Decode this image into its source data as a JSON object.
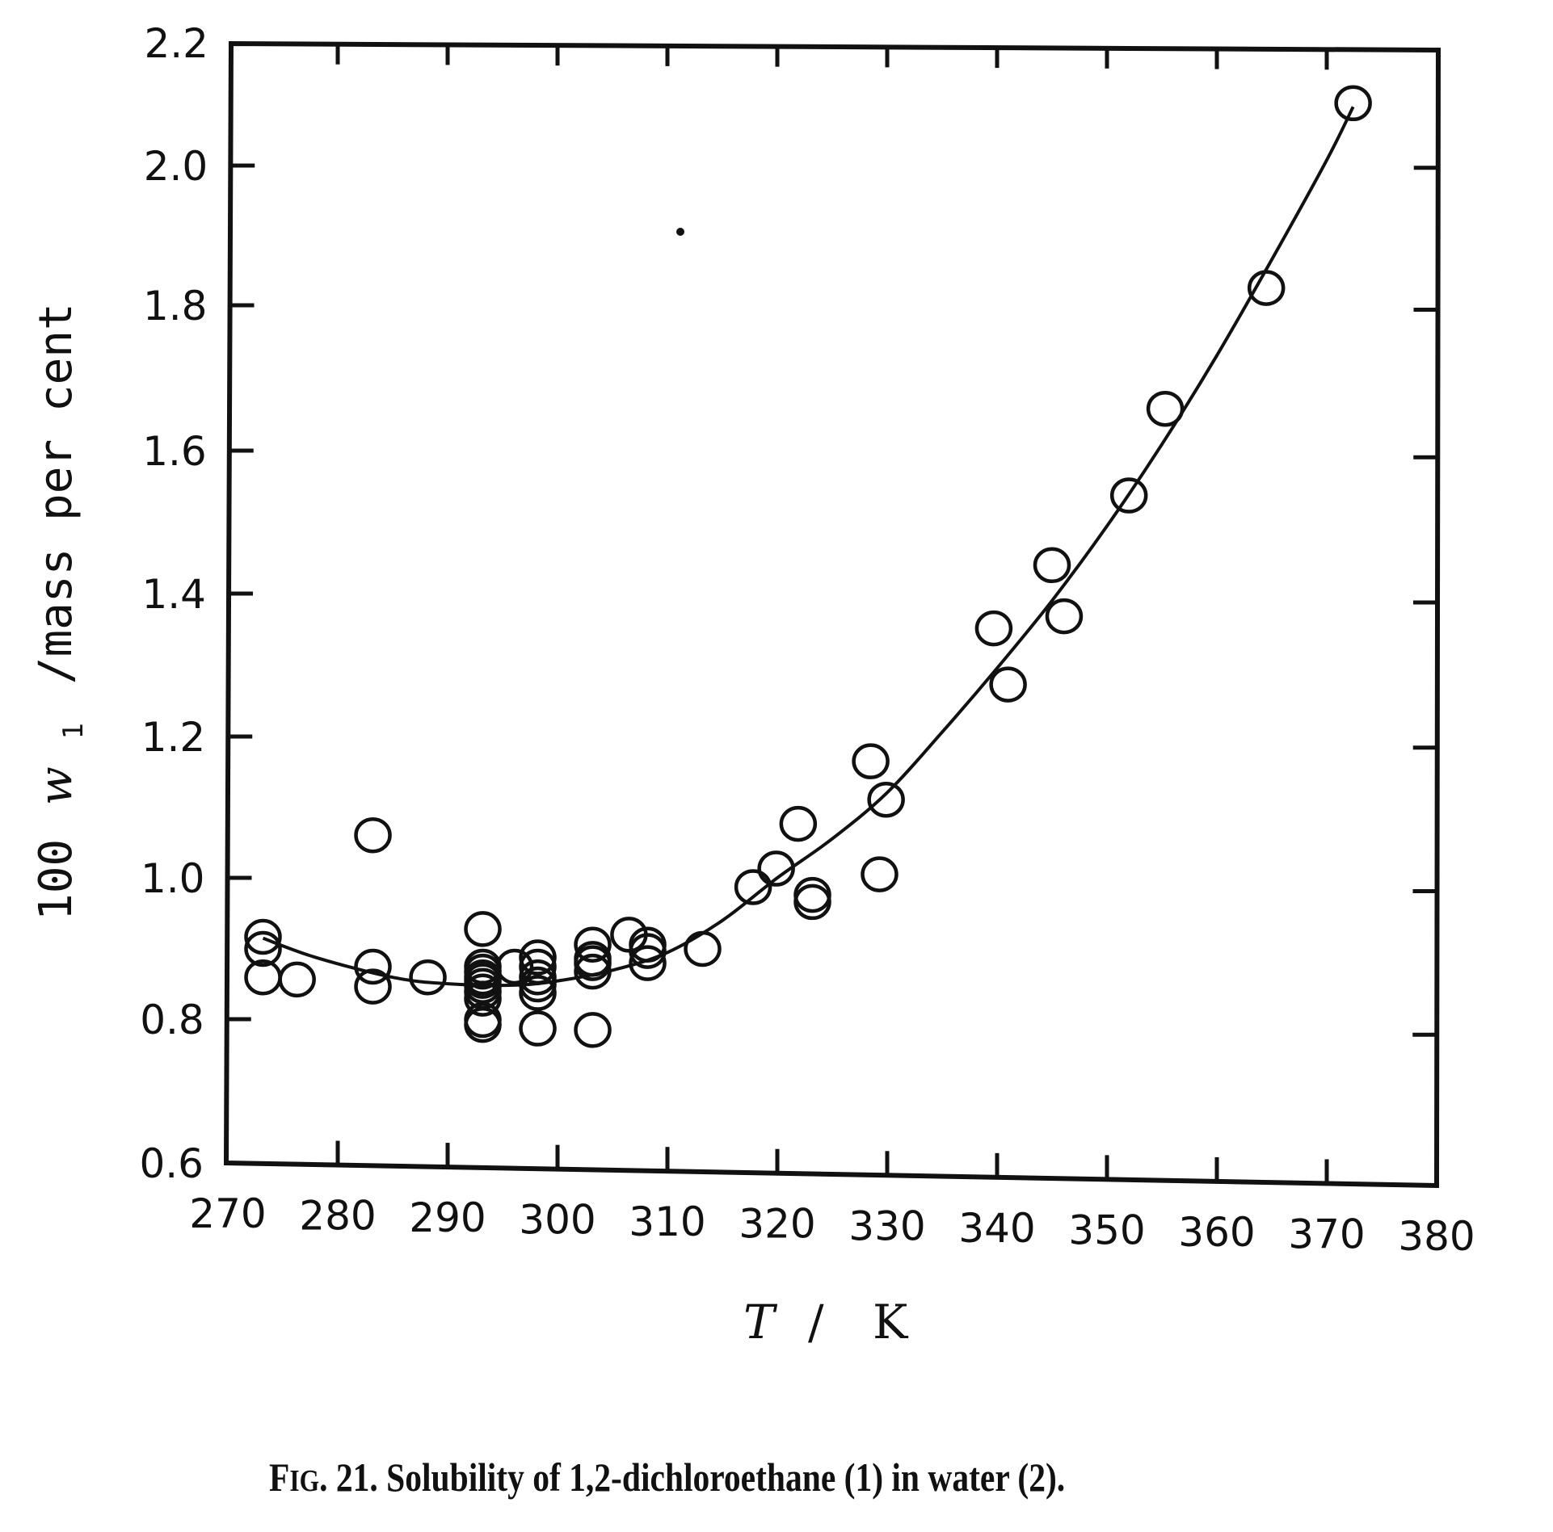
{
  "chart_data": {
    "type": "scatter",
    "title": "",
    "caption": "FIG. 21.  Solubility of 1,2-dichloroethane (1) in water (2).",
    "xlabel": "T / K",
    "ylabel": "100 w1 /mass per cent",
    "xlim": [
      270,
      380
    ],
    "ylim": [
      0.6,
      2.2
    ],
    "grid": false,
    "legend": null,
    "x_ticks": [
      270,
      280,
      290,
      300,
      310,
      320,
      330,
      340,
      350,
      360,
      370,
      380
    ],
    "y_ticks": [
      0.6,
      0.8,
      1.0,
      1.2,
      1.4,
      1.6,
      1.8,
      2.0,
      2.2
    ],
    "x_tick_labels": [
      "270",
      "280",
      "290",
      "300",
      "310",
      "320",
      "330",
      "340",
      "350",
      "360",
      "370",
      "380"
    ],
    "y_tick_labels": [
      "0.6",
      "0.8",
      "1.0",
      "1.2",
      "1.4",
      "1.6",
      "1.8",
      "2.0",
      "2.2"
    ],
    "series": [
      {
        "name": "experimental data",
        "marker": "open-circle",
        "points": [
          [
            273.2,
            0.917
          ],
          [
            273.2,
            0.9
          ],
          [
            273.2,
            0.86
          ],
          [
            276.3,
            0.857
          ],
          [
            283.2,
            1.06
          ],
          [
            283.2,
            0.875
          ],
          [
            283.2,
            0.847
          ],
          [
            288.2,
            0.86
          ],
          [
            293.2,
            0.928
          ],
          [
            293.2,
            0.875
          ],
          [
            293.2,
            0.868
          ],
          [
            293.2,
            0.86
          ],
          [
            293.2,
            0.855
          ],
          [
            293.2,
            0.848
          ],
          [
            293.2,
            0.84
          ],
          [
            293.2,
            0.83
          ],
          [
            293.2,
            0.8
          ],
          [
            293.2,
            0.793
          ],
          [
            296.1,
            0.875
          ],
          [
            298.2,
            0.888
          ],
          [
            298.2,
            0.875
          ],
          [
            298.2,
            0.86
          ],
          [
            298.2,
            0.85
          ],
          [
            298.2,
            0.838
          ],
          [
            298.2,
            0.788
          ],
          [
            303.2,
            0.906
          ],
          [
            303.2,
            0.886
          ],
          [
            303.2,
            0.88
          ],
          [
            303.2,
            0.868
          ],
          [
            303.2,
            0.786
          ],
          [
            306.5,
            0.92
          ],
          [
            308.2,
            0.906
          ],
          [
            308.2,
            0.897
          ],
          [
            308.2,
            0.88
          ],
          [
            313.2,
            0.9
          ],
          [
            317.8,
            0.987
          ],
          [
            319.9,
            1.013
          ],
          [
            321.9,
            1.076
          ],
          [
            323.2,
            0.976
          ],
          [
            323.2,
            0.966
          ],
          [
            328.5,
            1.164
          ],
          [
            329.3,
            1.005
          ],
          [
            329.9,
            1.11
          ],
          [
            339.7,
            1.351
          ],
          [
            341.0,
            1.272
          ],
          [
            345.0,
            1.44
          ],
          [
            346.1,
            1.368
          ],
          [
            352.0,
            1.538
          ],
          [
            355.3,
            1.66
          ],
          [
            364.5,
            1.83
          ],
          [
            372.4,
            2.09
          ]
        ]
      },
      {
        "name": "fitted curve",
        "marker": "line",
        "points": [
          [
            273.2,
            0.915
          ],
          [
            278,
            0.888
          ],
          [
            285,
            0.86
          ],
          [
            290,
            0.851
          ],
          [
            296,
            0.849
          ],
          [
            300,
            0.855
          ],
          [
            305,
            0.87
          ],
          [
            310,
            0.895
          ],
          [
            315,
            0.94
          ],
          [
            320,
            1.0
          ],
          [
            325,
            1.055
          ],
          [
            330,
            1.12
          ],
          [
            335,
            1.205
          ],
          [
            340,
            1.295
          ],
          [
            345,
            1.39
          ],
          [
            350,
            1.495
          ],
          [
            355,
            1.61
          ],
          [
            360,
            1.735
          ],
          [
            365,
            1.87
          ],
          [
            370,
            2.01
          ],
          [
            372.4,
            2.085
          ]
        ]
      }
    ]
  },
  "labels": {
    "xlabel_T": "T",
    "xlabel_sep": "/",
    "xlabel_unit": "K",
    "ylabel_prefix": "100",
    "ylabel_var": "w",
    "ylabel_sub": "1",
    "ylabel_rest": "/mass per cent",
    "caption_fig": "F",
    "caption_fig_small": "IG",
    "caption_rest": ". 21.  Solubility of 1,2-dichloroethane (1) in water (2)."
  }
}
